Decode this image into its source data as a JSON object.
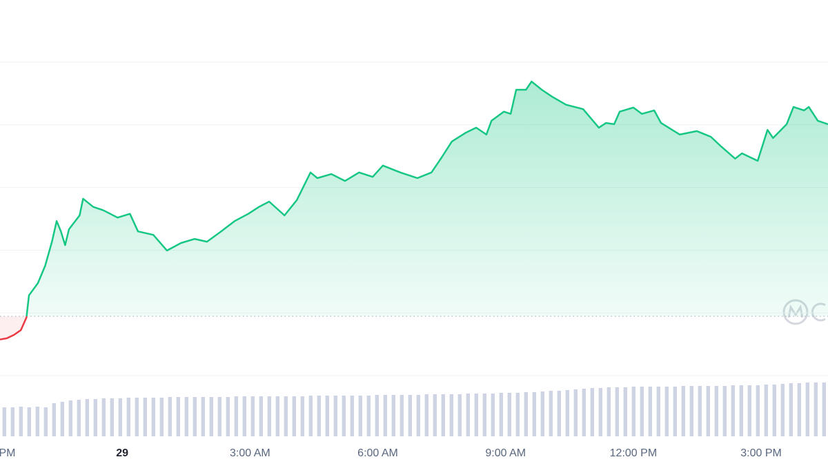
{
  "chart_data": [
    {
      "type": "area",
      "x": [
        -2.87,
        -2.71,
        -2.54,
        -2.38,
        -2.25,
        -2.19,
        -1.98,
        -1.81,
        -1.65,
        -1.54,
        -1.44,
        -1.34,
        -1.25,
        -1.0,
        -0.92,
        -0.68,
        -0.44,
        -0.11,
        0.18,
        0.37,
        0.73,
        1.05,
        1.38,
        1.7,
        1.99,
        2.32,
        2.64,
        2.96,
        3.21,
        3.45,
        3.81,
        4.1,
        4.42,
        4.58,
        4.91,
        5.23,
        5.56,
        5.88,
        6.12,
        6.53,
        6.93,
        7.26,
        7.5,
        7.74,
        8.07,
        8.31,
        8.55,
        8.67,
        8.96,
        9.12,
        9.25,
        9.48,
        9.61,
        9.85,
        10.09,
        10.42,
        10.82,
        11.19,
        11.36,
        11.55,
        11.68,
        12.0,
        12.2,
        12.49,
        12.65,
        13.09,
        13.49,
        13.82,
        14.06,
        14.39,
        14.55,
        14.92,
        15.15,
        15.28,
        15.6,
        15.76,
        16.01,
        16.12,
        16.33,
        16.57
      ],
      "values": [
        11.5,
        11.9,
        13.0,
        14.5,
        18.5,
        25.6,
        29.5,
        35.0,
        42.7,
        49.3,
        46.0,
        41.6,
        46.7,
        51.1,
        56.4,
        53.8,
        52.7,
        50.4,
        51.6,
        46.0,
        44.9,
        39.9,
        42.3,
        43.6,
        42.7,
        46.0,
        49.3,
        51.6,
        53.8,
        55.5,
        51.1,
        56.0,
        64.8,
        63.0,
        64.3,
        62.1,
        64.8,
        63.4,
        67.0,
        64.8,
        63.0,
        64.8,
        69.6,
        74.7,
        77.5,
        79.1,
        76.9,
        81.3,
        84.2,
        83.5,
        91.2,
        91.2,
        93.8,
        91.2,
        89.0,
        86.4,
        85.0,
        79.1,
        80.6,
        80.2,
        84.2,
        85.5,
        83.5,
        84.6,
        80.6,
        76.9,
        78.0,
        76.2,
        73.1,
        69.2,
        70.9,
        68.5,
        78.4,
        75.8,
        80.2,
        85.7,
        84.6,
        85.7,
        81.3,
        80.2
      ],
      "xlim": [
        -2.87,
        16.57
      ],
      "ylim": [
        0,
        100
      ],
      "xticks": [
        {
          "value": -2.7,
          "label": "PM"
        },
        {
          "value": 0,
          "label": "29"
        },
        {
          "value": 3,
          "label": "3:00 AM"
        },
        {
          "value": 6,
          "label": "6:00 AM"
        },
        {
          "value": 9,
          "label": "9:00 AM"
        },
        {
          "value": 12,
          "label": "12:00 PM"
        },
        {
          "value": 15,
          "label": "3:00 PM"
        }
      ],
      "gridlines": [
        0,
        20,
        40,
        60,
        80,
        100
      ],
      "reference": 18.9,
      "up_color": "#16c784",
      "down_color": "#ea3943"
    },
    {
      "type": "bar",
      "values": [
        42,
        42,
        43,
        42,
        43,
        42,
        48,
        50,
        52,
        53,
        54,
        54,
        55,
        55,
        55,
        56,
        56,
        56,
        56,
        56,
        57,
        57,
        57,
        57,
        57,
        57,
        57,
        57,
        58,
        58,
        58,
        58,
        58,
        58,
        58,
        58,
        58,
        59,
        59,
        59,
        59,
        59,
        59,
        59,
        59,
        60,
        60,
        60,
        60,
        60,
        60,
        61,
        61,
        61,
        61,
        61,
        62,
        62,
        62,
        62,
        63,
        63,
        63,
        64,
        64,
        65,
        66,
        66,
        67,
        68,
        69,
        70,
        70,
        71,
        71,
        71,
        72,
        72,
        72,
        72,
        72,
        72,
        73,
        73,
        73,
        73,
        73,
        73,
        74,
        74,
        74,
        74,
        75,
        75,
        76,
        77,
        77,
        78,
        78,
        78
      ],
      "ylim": [
        0,
        100
      ],
      "color": "#cfd4e4"
    }
  ]
}
